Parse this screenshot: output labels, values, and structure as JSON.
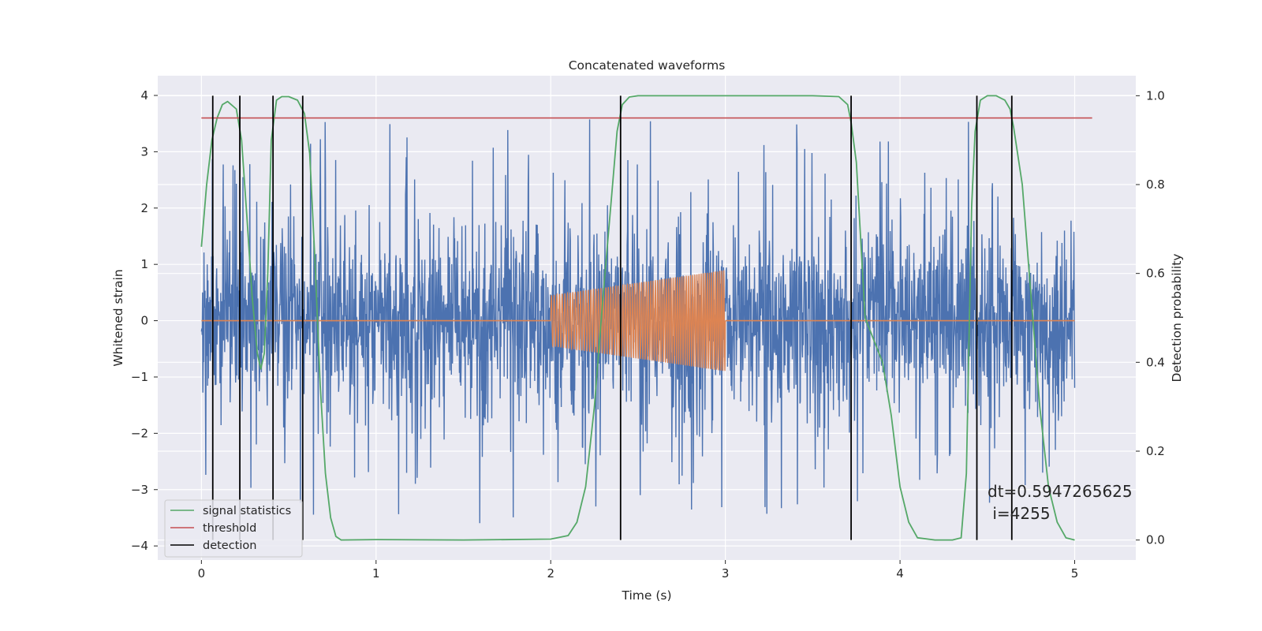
{
  "chart_data": {
    "type": "line",
    "title": "Concatenated waveforms",
    "xlabel": "Time (s)",
    "ylabel": "Whitened strain",
    "y2label": "Detection probability",
    "xlim": [
      -0.25,
      5.35
    ],
    "ylim": [
      -4.25,
      4.35
    ],
    "y2lim": [
      -0.045,
      1.045
    ],
    "xticks": [
      0,
      1,
      2,
      3,
      4,
      5
    ],
    "yticks": [
      -4,
      -3,
      -2,
      -1,
      0,
      1,
      2,
      3,
      4
    ],
    "y2ticks": [
      0.0,
      0.2,
      0.4,
      0.6,
      0.8,
      1.0
    ],
    "grid": true,
    "legend_position": "lower-left",
    "colors": {
      "noise": "#4c72b0",
      "injection": "#dd8452",
      "signal_statistics": "#55a868",
      "threshold": "#c44e52",
      "detection": "#000000",
      "plot_bg": "#eaeaf2",
      "grid": "#ffffff"
    },
    "series": [
      {
        "name": "",
        "axis": "left",
        "kind": "noise",
        "x_range": [
          0,
          5
        ],
        "amplitude_envelope": 3.7,
        "max_value": 4.0,
        "min_value": -3.9,
        "dense_band": [
          -0.8,
          0.8
        ]
      },
      {
        "name": "",
        "axis": "left",
        "kind": "chirp",
        "x_range": [
          2.0,
          3.0
        ],
        "amplitude_start": 0.45,
        "amplitude_end": 0.9,
        "cycles": 75,
        "baseline_x_range": [
          0,
          5
        ],
        "baseline_value": 0
      },
      {
        "name": "signal statistics",
        "axis": "right",
        "x": [
          0,
          0.03,
          0.06,
          0.09,
          0.12,
          0.15,
          0.2,
          0.23,
          0.26,
          0.29,
          0.32,
          0.34,
          0.36,
          0.38,
          0.4,
          0.43,
          0.46,
          0.5,
          0.55,
          0.59,
          0.62,
          0.65,
          0.68,
          0.71,
          0.74,
          0.77,
          0.8,
          1.0,
          1.5,
          2.0,
          2.1,
          2.15,
          2.2,
          2.25,
          2.3,
          2.35,
          2.38,
          2.41,
          2.45,
          2.5,
          2.6,
          3.0,
          3.5,
          3.65,
          3.7,
          3.72,
          3.75,
          3.8,
          3.85,
          3.9,
          3.95,
          4.0,
          4.05,
          4.1,
          4.2,
          4.3,
          4.35,
          4.38,
          4.41,
          4.43,
          4.46,
          4.5,
          4.55,
          4.6,
          4.63,
          4.65,
          4.7,
          4.75,
          4.8,
          4.85,
          4.9,
          4.95,
          5.0
        ],
        "y": [
          0.66,
          0.8,
          0.9,
          0.95,
          0.98,
          0.987,
          0.97,
          0.9,
          0.73,
          0.55,
          0.42,
          0.385,
          0.42,
          0.6,
          0.9,
          0.99,
          0.998,
          0.998,
          0.99,
          0.96,
          0.87,
          0.63,
          0.35,
          0.15,
          0.05,
          0.008,
          0.0,
          0.001,
          0.0,
          0.002,
          0.01,
          0.04,
          0.12,
          0.3,
          0.55,
          0.78,
          0.92,
          0.98,
          0.997,
          1.0,
          1.0,
          1.0,
          1.0,
          0.998,
          0.98,
          0.94,
          0.85,
          0.5,
          0.45,
          0.4,
          0.28,
          0.12,
          0.04,
          0.005,
          0.0,
          0.0,
          0.005,
          0.15,
          0.75,
          0.92,
          0.99,
          1.0,
          1.0,
          0.99,
          0.97,
          0.93,
          0.8,
          0.55,
          0.3,
          0.12,
          0.04,
          0.005,
          0.0
        ]
      },
      {
        "name": "threshold",
        "axis": "right",
        "x": [
          0,
          5.1
        ],
        "y": [
          0.95,
          0.95
        ]
      },
      {
        "name": "detection",
        "axis": "right",
        "kind": "vlines",
        "x": [
          0.065,
          0.22,
          0.41,
          0.58,
          2.4,
          3.72,
          4.44,
          4.64
        ],
        "ymin": 0.0,
        "ymax": 1.0
      }
    ],
    "annotation": {
      "line1": "dt=0.5947265625",
      "line2": " i=4255"
    }
  }
}
